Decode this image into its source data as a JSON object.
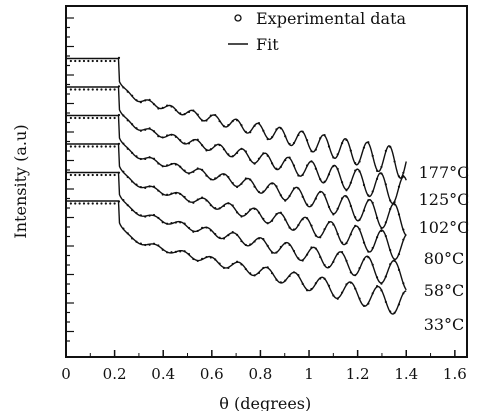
{
  "chart_data": {
    "type": "line",
    "title": "",
    "xlabel": "θ (degrees)",
    "ylabel": "Intensity (a.u)",
    "xlim": [
      0,
      1.65
    ],
    "x_ticks": [
      "0",
      "0.2",
      "0.4",
      "0.6",
      "0.8",
      "1",
      "1.2",
      "1.4",
      "1.6"
    ],
    "legend": {
      "placement": "top-center",
      "entries": [
        {
          "label": "Experimental data",
          "marker": "circle"
        },
        {
          "label": "Fit",
          "marker": "line"
        }
      ]
    },
    "series": [
      {
        "name": "33°C",
        "critical_angle": 0.22,
        "period": 0.115,
        "damping": 0.5
      },
      {
        "name": "58°C",
        "critical_angle": 0.22,
        "period": 0.11,
        "damping": 0.5
      },
      {
        "name": "80°C",
        "critical_angle": 0.22,
        "period": 0.105,
        "damping": 0.5
      },
      {
        "name": "102°C",
        "critical_angle": 0.22,
        "period": 0.1,
        "damping": 0.5
      },
      {
        "name": "125°C",
        "critical_angle": 0.22,
        "period": 0.095,
        "damping": 0.5
      },
      {
        "name": "177°C",
        "critical_angle": 0.22,
        "period": 0.09,
        "damping": 0.5
      }
    ],
    "grid": false,
    "x_max_data": 1.4,
    "colors": {
      "line": "#111111",
      "marker": "#111111"
    }
  }
}
